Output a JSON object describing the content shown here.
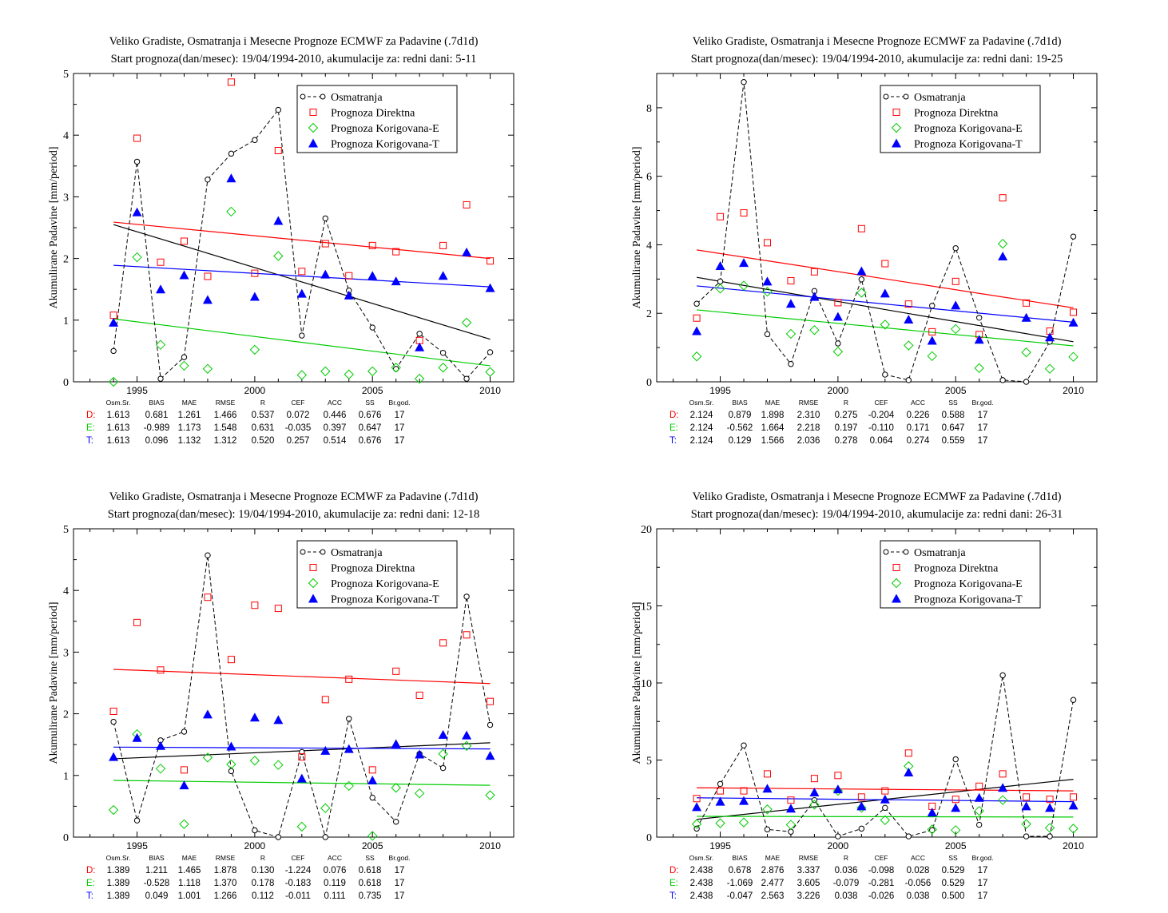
{
  "legend_labels": {
    "obs": "Osmatranja",
    "dir": "Prognoza Direktna",
    "kore": "Prognoza Korigovana-E",
    "kort": "Prognoza Korigovana-T"
  },
  "stats_header": [
    "Osm.Sr.",
    "BIAS",
    "MAE",
    "RMSE",
    "R",
    "CEF",
    "ACC",
    "SS",
    "Br.god."
  ],
  "colors": {
    "obs": "#000000",
    "dir": "#ff0000",
    "kore": "#00cc00",
    "kort": "#0000ff"
  },
  "chart_data": [
    {
      "type": "scatter",
      "title": "Veliko Gradiste, Osmatranja i Mesecne Prognoze ECMWF za Padavine (.7d1d)",
      "subtitle": "Start prognoza(dan/mesec): 19/04/1994-2010, akumulacije za: redni dani: 5-11",
      "ylabel": "Akumulirane Padavine [mm/period]",
      "xlim": [
        1992.3,
        2011
      ],
      "ylim": [
        0,
        5
      ],
      "xticks": [
        1995,
        2000,
        2005,
        2010
      ],
      "yticks": [
        0,
        1,
        2,
        3,
        4,
        5
      ],
      "legend_position": "top-right",
      "x": [
        1994,
        1995,
        1996,
        1997,
        1998,
        1999,
        2000,
        2001,
        2002,
        2003,
        2004,
        2005,
        2006,
        2007,
        2008,
        2009,
        2010
      ],
      "series": [
        {
          "name": "Osmatranja",
          "values": [
            0.5,
            3.57,
            0.05,
            0.4,
            3.28,
            3.7,
            3.92,
            4.41,
            0.75,
            2.65,
            1.48,
            0.88,
            0.21,
            0.78,
            0.47,
            0.05,
            0.48
          ]
        },
        {
          "name": "Prognoza Direktna",
          "values": [
            1.08,
            3.95,
            1.94,
            2.28,
            1.71,
            4.86,
            1.76,
            3.75,
            1.79,
            2.24,
            1.72,
            2.21,
            2.11,
            0.67,
            2.21,
            2.87,
            1.96
          ]
        },
        {
          "name": "Prognoza Korigovana-E",
          "values": [
            0.0,
            2.02,
            0.6,
            0.26,
            0.21,
            2.76,
            0.52,
            2.04,
            0.11,
            0.17,
            0.12,
            0.17,
            0.23,
            0.05,
            0.23,
            0.96,
            0.16
          ]
        },
        {
          "name": "Prognoza Korigovana-T",
          "values": [
            0.96,
            2.75,
            1.5,
            1.73,
            1.33,
            3.3,
            1.38,
            2.61,
            1.43,
            1.74,
            1.4,
            1.72,
            1.63,
            0.56,
            1.72,
            2.1,
            1.52
          ]
        }
      ],
      "trends": [
        {
          "series": "Osmatranja",
          "y_start": 2.55,
          "y_end": 0.69
        },
        {
          "series": "Prognoza Direktna",
          "y_start": 2.59,
          "y_end": 2.0
        },
        {
          "series": "Prognoza Korigovana-E",
          "y_start": 1.02,
          "y_end": 0.26
        },
        {
          "series": "Prognoza Korigovana-T",
          "y_start": 1.89,
          "y_end": 1.54
        }
      ],
      "stats": [
        {
          "label": "D:",
          "values": [
            "1.613",
            "0.681",
            "1.261",
            "1.466",
            "0.537",
            "0.072",
            "0.446",
            "0.676",
            "17"
          ]
        },
        {
          "label": "E:",
          "values": [
            "1.613",
            "-0.989",
            "1.173",
            "1.548",
            "0.631",
            "-0.035",
            "0.397",
            "0.647",
            "17"
          ]
        },
        {
          "label": "T:",
          "values": [
            "1.613",
            "0.096",
            "1.132",
            "1.312",
            "0.520",
            "0.257",
            "0.514",
            "0.676",
            "17"
          ]
        }
      ]
    },
    {
      "type": "scatter",
      "title": "Veliko Gradiste, Osmatranja i Mesecne Prognoze ECMWF za Padavine (.7d1d)",
      "subtitle": "Start prognoza(dan/mesec): 19/04/1994-2010, akumulacije za: redni dani: 19-25",
      "ylabel": "Akumulirane Padavine [mm/period]",
      "xlim": [
        1992.3,
        2011
      ],
      "ylim": [
        0,
        9
      ],
      "xticks": [
        1995,
        2000,
        2005,
        2010
      ],
      "yticks": [
        0,
        2,
        4,
        6,
        8
      ],
      "legend_position": "top-right",
      "x": [
        1994,
        1995,
        1996,
        1997,
        1998,
        1999,
        2000,
        2001,
        2002,
        2003,
        2004,
        2005,
        2006,
        2007,
        2008,
        2009,
        2010
      ],
      "series": [
        {
          "name": "Osmatranja",
          "values": [
            2.28,
            2.93,
            8.75,
            1.39,
            0.52,
            2.65,
            1.12,
            2.99,
            0.21,
            0.05,
            2.22,
            3.9,
            1.87,
            0.05,
            0.0,
            1.17,
            4.24
          ]
        },
        {
          "name": "Prognoza Direktna",
          "values": [
            1.86,
            4.82,
            4.93,
            4.06,
            2.95,
            3.21,
            2.31,
            4.47,
            3.45,
            2.27,
            1.46,
            2.93,
            1.38,
            5.37,
            2.3,
            1.48,
            2.03
          ]
        },
        {
          "name": "Prognoza Korigovana-E",
          "values": [
            0.74,
            2.72,
            2.81,
            2.63,
            1.4,
            1.51,
            0.88,
            2.6,
            1.67,
            1.06,
            0.75,
            1.54,
            0.4,
            4.03,
            0.86,
            0.38,
            0.73
          ]
        },
        {
          "name": "Prognoza Korigovana-T",
          "values": [
            1.48,
            3.38,
            3.47,
            2.93,
            2.28,
            2.48,
            1.9,
            3.23,
            2.58,
            1.82,
            1.2,
            2.23,
            1.23,
            3.66,
            1.87,
            1.3,
            1.73
          ]
        }
      ],
      "trends": [
        {
          "series": "Osmatranja",
          "y_start": 3.05,
          "y_end": 1.17
        },
        {
          "series": "Prognoza Direktna",
          "y_start": 3.85,
          "y_end": 2.16
        },
        {
          "series": "Prognoza Korigovana-E",
          "y_start": 2.1,
          "y_end": 1.05
        },
        {
          "series": "Prognoza Korigovana-T",
          "y_start": 2.8,
          "y_end": 1.74
        }
      ],
      "stats": [
        {
          "label": "D:",
          "values": [
            "2.124",
            "0.879",
            "1.898",
            "2.310",
            "0.275",
            "-0.204",
            "0.226",
            "0.588",
            "17"
          ]
        },
        {
          "label": "E:",
          "values": [
            "2.124",
            "-0.562",
            "1.664",
            "2.218",
            "0.197",
            "-0.110",
            "0.171",
            "0.647",
            "17"
          ]
        },
        {
          "label": "T:",
          "values": [
            "2.124",
            "0.129",
            "1.566",
            "2.036",
            "0.278",
            "0.064",
            "0.274",
            "0.559",
            "17"
          ]
        }
      ]
    },
    {
      "type": "scatter",
      "title": "Veliko Gradiste, Osmatranja i Mesecne Prognoze ECMWF za Padavine (.7d1d)",
      "subtitle": "Start prognoza(dan/mesec): 19/04/1994-2010, akumulacije za: redni dani: 12-18",
      "ylabel": "Akumulirane Padavine [mm/period]",
      "xlim": [
        1992.3,
        2011
      ],
      "ylim": [
        0,
        5
      ],
      "xticks": [
        1995,
        2000,
        2005,
        2010
      ],
      "yticks": [
        0,
        1,
        2,
        3,
        4,
        5
      ],
      "legend_position": "top-right",
      "x": [
        1994,
        1995,
        1996,
        1997,
        1998,
        1999,
        2000,
        2001,
        2002,
        2003,
        2004,
        2005,
        2006,
        2007,
        2008,
        2009,
        2010
      ],
      "series": [
        {
          "name": "Osmatranja",
          "values": [
            1.87,
            0.27,
            1.57,
            1.71,
            4.57,
            1.07,
            0.11,
            0.0,
            1.38,
            0.0,
            1.92,
            0.64,
            0.25,
            1.35,
            1.12,
            3.9,
            1.82
          ]
        },
        {
          "name": "Prognoza Direktna",
          "values": [
            2.04,
            3.48,
            2.71,
            1.09,
            3.89,
            2.88,
            3.76,
            3.71,
            1.3,
            2.23,
            2.56,
            1.09,
            2.69,
            2.3,
            3.15,
            3.28,
            2.2
          ]
        },
        {
          "name": "Prognoza Korigovana-E",
          "values": [
            0.44,
            1.67,
            1.11,
            0.21,
            1.29,
            1.18,
            1.24,
            1.17,
            0.17,
            0.47,
            0.83,
            0.02,
            0.8,
            0.71,
            1.35,
            1.48,
            0.68
          ]
        },
        {
          "name": "Prognoza Korigovana-T",
          "values": [
            1.3,
            1.61,
            1.48,
            0.84,
            1.99,
            1.47,
            1.94,
            1.9,
            0.95,
            1.4,
            1.43,
            0.92,
            1.51,
            1.34,
            1.66,
            1.65,
            1.32
          ]
        }
      ],
      "trends": [
        {
          "series": "Osmatranja",
          "y_start": 1.27,
          "y_end": 1.53
        },
        {
          "series": "Prognoza Direktna",
          "y_start": 2.72,
          "y_end": 2.49
        },
        {
          "series": "Prognoza Korigovana-E",
          "y_start": 0.92,
          "y_end": 0.84
        },
        {
          "series": "Prognoza Korigovana-T",
          "y_start": 1.46,
          "y_end": 1.43
        }
      ],
      "stats": [
        {
          "label": "D:",
          "values": [
            "1.389",
            "1.211",
            "1.465",
            "1.878",
            "0.130",
            "-1.224",
            "0.076",
            "0.618",
            "17"
          ]
        },
        {
          "label": "E:",
          "values": [
            "1.389",
            "-0.528",
            "1.118",
            "1.370",
            "0.178",
            "-0.183",
            "0.119",
            "0.618",
            "17"
          ]
        },
        {
          "label": "T:",
          "values": [
            "1.389",
            "0.049",
            "1.001",
            "1.266",
            "0.112",
            "-0.011",
            "0.111",
            "0.735",
            "17"
          ]
        }
      ]
    },
    {
      "type": "scatter",
      "title": "Veliko Gradiste, Osmatranja i Mesecne Prognoze ECMWF za Padavine (.7d1d)",
      "subtitle": "Start prognoza(dan/mesec): 19/04/1994-2010, akumulacije za: redni dani: 26-31",
      "ylabel": "Akumulirane Padavine [mm/period]",
      "xlim": [
        1992.3,
        2011
      ],
      "ylim": [
        0,
        20
      ],
      "xticks": [
        1995,
        2000,
        2005,
        2010
      ],
      "yticks": [
        0,
        5,
        10,
        15,
        20
      ],
      "legend_position": "top-right",
      "x": [
        1994,
        1995,
        1996,
        1997,
        1998,
        1999,
        2000,
        2001,
        2002,
        2003,
        2004,
        2005,
        2006,
        2007,
        2008,
        2009,
        2010
      ],
      "series": [
        {
          "name": "Osmatranja",
          "values": [
            0.55,
            3.45,
            5.95,
            0.5,
            0.35,
            2.4,
            0.05,
            0.55,
            1.9,
            0.05,
            0.45,
            5.05,
            0.8,
            10.5,
            0.05,
            0.05,
            8.9
          ]
        },
        {
          "name": "Prognoza Direktna",
          "values": [
            2.5,
            3.0,
            3.0,
            4.1,
            2.4,
            3.8,
            4.0,
            2.6,
            3.0,
            5.45,
            2.0,
            2.45,
            3.3,
            4.1,
            2.6,
            2.45,
            2.6
          ]
        },
        {
          "name": "Prognoza Korigovana-E",
          "values": [
            0.85,
            0.9,
            0.95,
            1.8,
            0.8,
            2.1,
            3.0,
            1.9,
            1.1,
            4.6,
            0.5,
            0.45,
            1.7,
            2.4,
            0.85,
            0.6,
            0.55
          ]
        },
        {
          "name": "Prognoza Korigovana-T",
          "values": [
            1.95,
            2.3,
            2.35,
            3.15,
            1.85,
            2.9,
            3.1,
            2.0,
            2.45,
            4.2,
            1.6,
            1.9,
            2.55,
            3.2,
            2.0,
            1.9,
            2.05
          ]
        }
      ],
      "trends": [
        {
          "series": "Osmatranja",
          "y_start": 1.15,
          "y_end": 3.75
        },
        {
          "series": "Prognoza Direktna",
          "y_start": 3.2,
          "y_end": 3.0
        },
        {
          "series": "Prognoza Korigovana-E",
          "y_start": 1.35,
          "y_end": 1.3
        },
        {
          "series": "Prognoza Korigovana-T",
          "y_start": 2.55,
          "y_end": 2.3
        }
      ],
      "stats": [
        {
          "label": "D:",
          "values": [
            "2.438",
            "0.678",
            "2.876",
            "3.337",
            "0.036",
            "-0.098",
            "0.028",
            "0.529",
            "17"
          ]
        },
        {
          "label": "E:",
          "values": [
            "2.438",
            "-1.069",
            "2.477",
            "3.605",
            "-0.079",
            "-0.281",
            "-0.056",
            "0.529",
            "17"
          ]
        },
        {
          "label": "T:",
          "values": [
            "2.438",
            "-0.047",
            "2.563",
            "3.226",
            "0.038",
            "-0.026",
            "0.038",
            "0.500",
            "17"
          ]
        }
      ]
    }
  ]
}
